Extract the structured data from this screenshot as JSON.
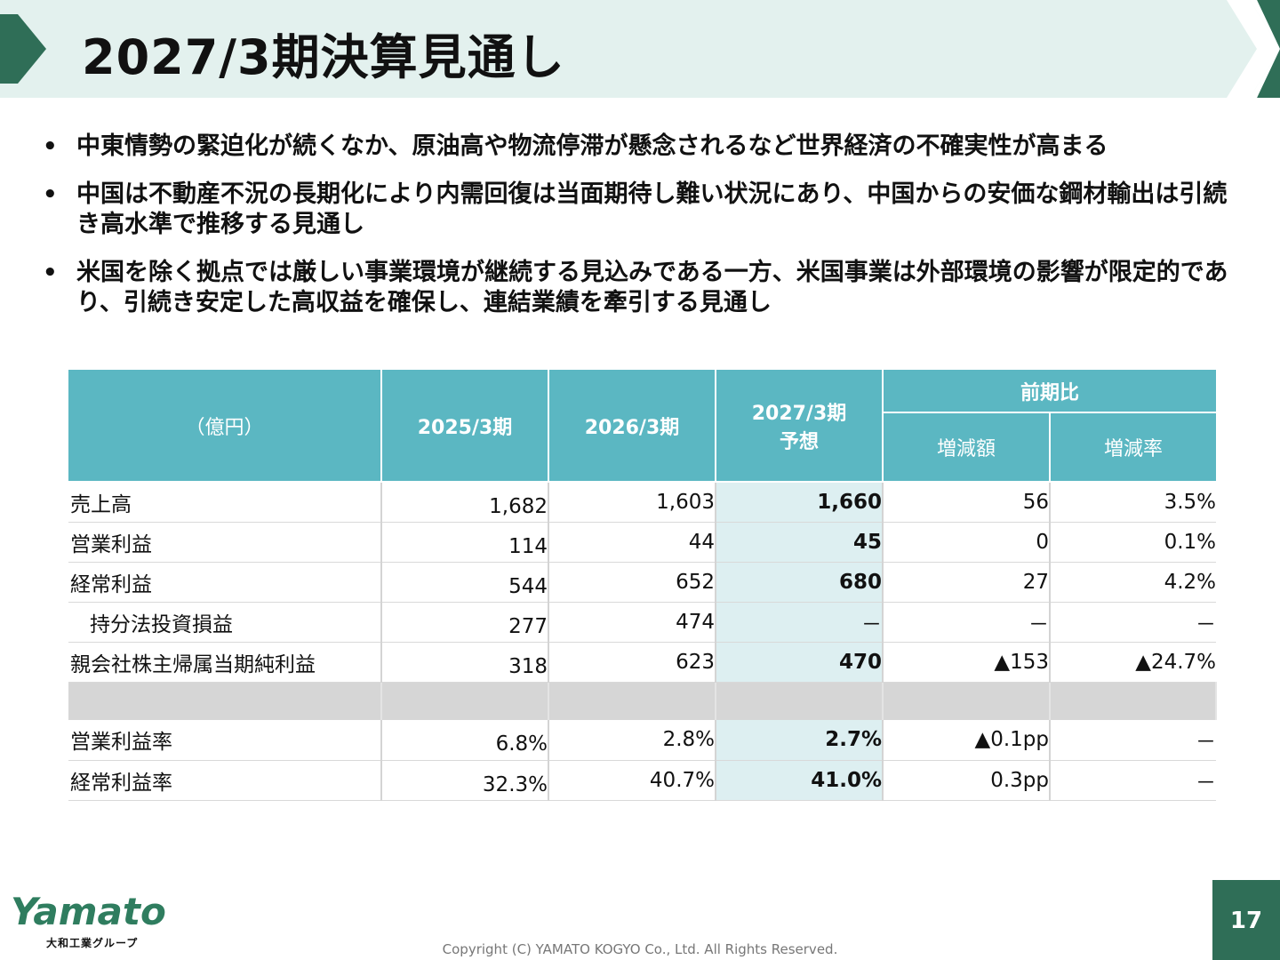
{
  "header": {
    "title": "2027/3期決算見通し"
  },
  "bullets": [
    "中東情勢の緊迫化が続くなか、原油高や物流停滞が懸念されるなど世界経済の不確実性が高まる",
    "中国は不動産不況の長期化により内需回復は当面期待し難い状況にあり、中国からの安価な鋼材輸出は引続き高水準で推移する見通し",
    "米国を除く拠点では厳しい事業環境が継続する見込みである一方、米国事業は外部環境の影響が限定的であり、引続き安定した高収益を確保し、連結業績を牽引する見通し"
  ],
  "bullet_marker": "•",
  "table": {
    "unit_label": "（億円）",
    "col_2025": "2025/3期",
    "col_2026": "2026/3期",
    "col_2027_line1": "2027/3期",
    "col_2027_line2": "予想",
    "group_label": "前期比",
    "col_diff": "増減額",
    "col_rate": "増減率",
    "rows": [
      {
        "label": "売上高",
        "v2025": "1,682",
        "v2026": "1,603",
        "v2027": "1,660",
        "diff": "56",
        "rate": "3.5%"
      },
      {
        "label": "営業利益",
        "v2025": "114",
        "v2026": "44",
        "v2027": "45",
        "diff": "0",
        "rate": "0.1%"
      },
      {
        "label": "経常利益",
        "v2025": "544",
        "v2026": "652",
        "v2027": "680",
        "diff": "27",
        "rate": "4.2%"
      },
      {
        "label": "持分法投資損益",
        "v2025": "277",
        "v2026": "474",
        "v2027": "－",
        "diff": "－",
        "rate": "－"
      },
      {
        "label": "親会社株主帰属当期純利益",
        "v2025": "318",
        "v2026": "623",
        "v2027": "470",
        "diff": "▲153",
        "rate": "▲24.7%"
      }
    ],
    "ratio_rows": [
      {
        "label": "営業利益率",
        "v2025": "6.8%",
        "v2026": "2.8%",
        "v2027": "2.7%",
        "diff": "▲0.1pp",
        "rate": "－"
      },
      {
        "label": "経常利益率",
        "v2025": "32.3%",
        "v2026": "40.7%",
        "v2027": "41.0%",
        "diff": "0.3pp",
        "rate": "－"
      }
    ]
  },
  "footer": {
    "logo_text": "Yamato",
    "logo_sub": "大和工業グループ",
    "copyright": "Copyright (C) YAMATO KOGYO Co., Ltd. All Rights Reserved.",
    "page_number": "17"
  },
  "colors": {
    "header_bg": "#e3f1ee",
    "table_header": "#5bb7c2",
    "forecast_col": "#ddeff1",
    "accent_green": "#2f6e57"
  }
}
